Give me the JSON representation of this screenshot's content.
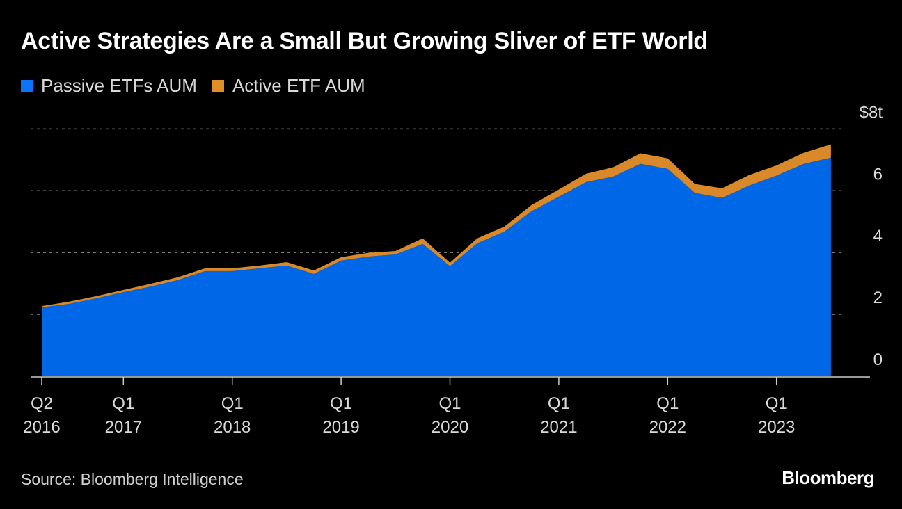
{
  "chart_data": {
    "type": "area",
    "stacked": true,
    "title": "Active Strategies Are a Small But Growing Sliver of ETF World",
    "xlabel": "",
    "ylabel": "",
    "y_unit_label": "$8t",
    "ylim": [
      0,
      8
    ],
    "yticks": [
      0,
      2,
      4,
      6,
      8
    ],
    "ytick_labels": [
      "0",
      "2",
      "4",
      "6",
      "$8t"
    ],
    "grid": true,
    "legend_position": "top-left",
    "categories": [
      "Q2 2016",
      "Q3 2016",
      "Q4 2016",
      "Q1 2017",
      "Q2 2017",
      "Q3 2017",
      "Q4 2017",
      "Q1 2018",
      "Q2 2018",
      "Q3 2018",
      "Q4 2018",
      "Q1 2019",
      "Q2 2019",
      "Q3 2019",
      "Q4 2019",
      "Q1 2020",
      "Q2 2020",
      "Q3 2020",
      "Q4 2020",
      "Q1 2021",
      "Q2 2021",
      "Q3 2021",
      "Q4 2021",
      "Q1 2022",
      "Q2 2022",
      "Q3 2022",
      "Q4 2022",
      "Q1 2023",
      "Q2 2023",
      "Q3 2023"
    ],
    "xticks": [
      {
        "index": 0,
        "line1": "Q2",
        "line2": "2016"
      },
      {
        "index": 3,
        "line1": "Q1",
        "line2": "2017"
      },
      {
        "index": 7,
        "line1": "Q1",
        "line2": "2018"
      },
      {
        "index": 11,
        "line1": "Q1",
        "line2": "2019"
      },
      {
        "index": 15,
        "line1": "Q1",
        "line2": "2020"
      },
      {
        "index": 19,
        "line1": "Q1",
        "line2": "2021"
      },
      {
        "index": 23,
        "line1": "Q1",
        "line2": "2022"
      },
      {
        "index": 27,
        "line1": "Q1",
        "line2": "2023"
      }
    ],
    "series": [
      {
        "name": "Passive ETFs AUM",
        "color": "#0068e6",
        "values": [
          2.23,
          2.34,
          2.52,
          2.72,
          2.9,
          3.11,
          3.4,
          3.4,
          3.49,
          3.58,
          3.31,
          3.74,
          3.87,
          3.94,
          4.28,
          3.56,
          4.3,
          4.68,
          5.34,
          5.81,
          6.28,
          6.46,
          6.87,
          6.71,
          5.93,
          5.77,
          6.17,
          6.49,
          6.87,
          7.07
        ]
      },
      {
        "name": "Active ETF AUM",
        "color": "#d9892a",
        "values": [
          0.04,
          0.07,
          0.07,
          0.07,
          0.09,
          0.09,
          0.09,
          0.09,
          0.09,
          0.11,
          0.11,
          0.11,
          0.12,
          0.11,
          0.18,
          0.11,
          0.16,
          0.16,
          0.2,
          0.23,
          0.27,
          0.3,
          0.34,
          0.34,
          0.29,
          0.31,
          0.34,
          0.33,
          0.36,
          0.43
        ]
      }
    ]
  },
  "legend": {
    "items": [
      {
        "label": "Passive ETFs AUM",
        "color": "#0a74ff"
      },
      {
        "label": "Active ETF AUM",
        "color": "#e08e28"
      }
    ]
  },
  "footer": {
    "source": "Source: Bloomberg Intelligence",
    "brand": "Bloomberg"
  }
}
